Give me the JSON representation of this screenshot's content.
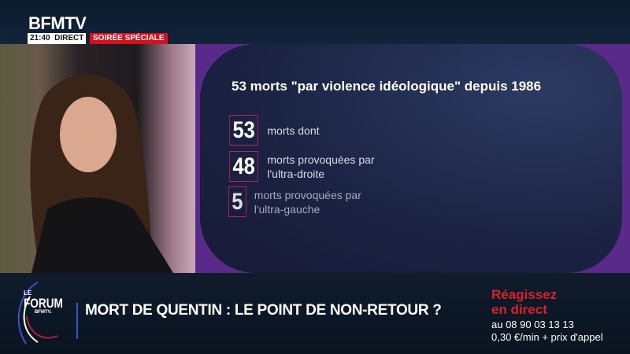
{
  "channel": {
    "logo": "BFMTV",
    "time": "21:40",
    "live": "DIRECT",
    "program_tag": "SOIRÉE SPÉCIALE"
  },
  "graphic": {
    "title": "53 morts \"par violence idéologique\" depuis 1986",
    "stats": [
      {
        "value": "53",
        "label_lines": [
          "morts dont"
        ]
      },
      {
        "value": "48",
        "label_lines": [
          "morts provoquées par",
          "l'ultra-droite"
        ]
      },
      {
        "value": "5",
        "label_lines": [
          "morts provoquées par",
          "l'ultra-gauche"
        ]
      }
    ],
    "accent_color": "#b0285a"
  },
  "banner": {
    "show_logo": {
      "le": "LE",
      "forum": "FORUM",
      "brand": "BFMTV."
    },
    "headline": "MORT DE QUENTIN : LE POINT DE NON-RETOUR ?",
    "cta_lines": [
      "Réagissez",
      "en direct"
    ],
    "phone_lines": [
      "au 08 90 03 13 13",
      "0,30 €/min + prix d'appel"
    ],
    "cta_color": "#d8202a"
  }
}
